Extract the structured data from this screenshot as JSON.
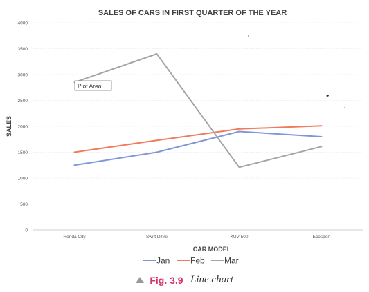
{
  "chart_data": {
    "type": "line",
    "title": "SALES OF CARS IN FIRST QUARTER OF THE YEAR",
    "xlabel": "CAR MODEL",
    "ylabel": "SALES",
    "categories": [
      "Honda City",
      "Swift Dzire",
      "XUV 500",
      "Ecosport"
    ],
    "ylim": [
      0,
      4000
    ],
    "yticks": [
      0,
      500,
      1000,
      1500,
      2000,
      2500,
      3000,
      3500,
      4000
    ],
    "grid": true,
    "legend_position": "bottom",
    "series": [
      {
        "name": "Jan",
        "color": "#7f96d8",
        "values": [
          1250,
          1500,
          1900,
          1800
        ]
      },
      {
        "name": "Feb",
        "color": "#ef7b5b",
        "values": [
          1500,
          1730,
          1950,
          2010
        ]
      },
      {
        "name": "Mar",
        "color": "#a5a5a5",
        "values": [
          2850,
          3400,
          1210,
          1610
        ]
      }
    ],
    "tooltip": "Plot Area"
  },
  "caption": {
    "label": "Fig. 3.9",
    "text": "Line chart"
  }
}
